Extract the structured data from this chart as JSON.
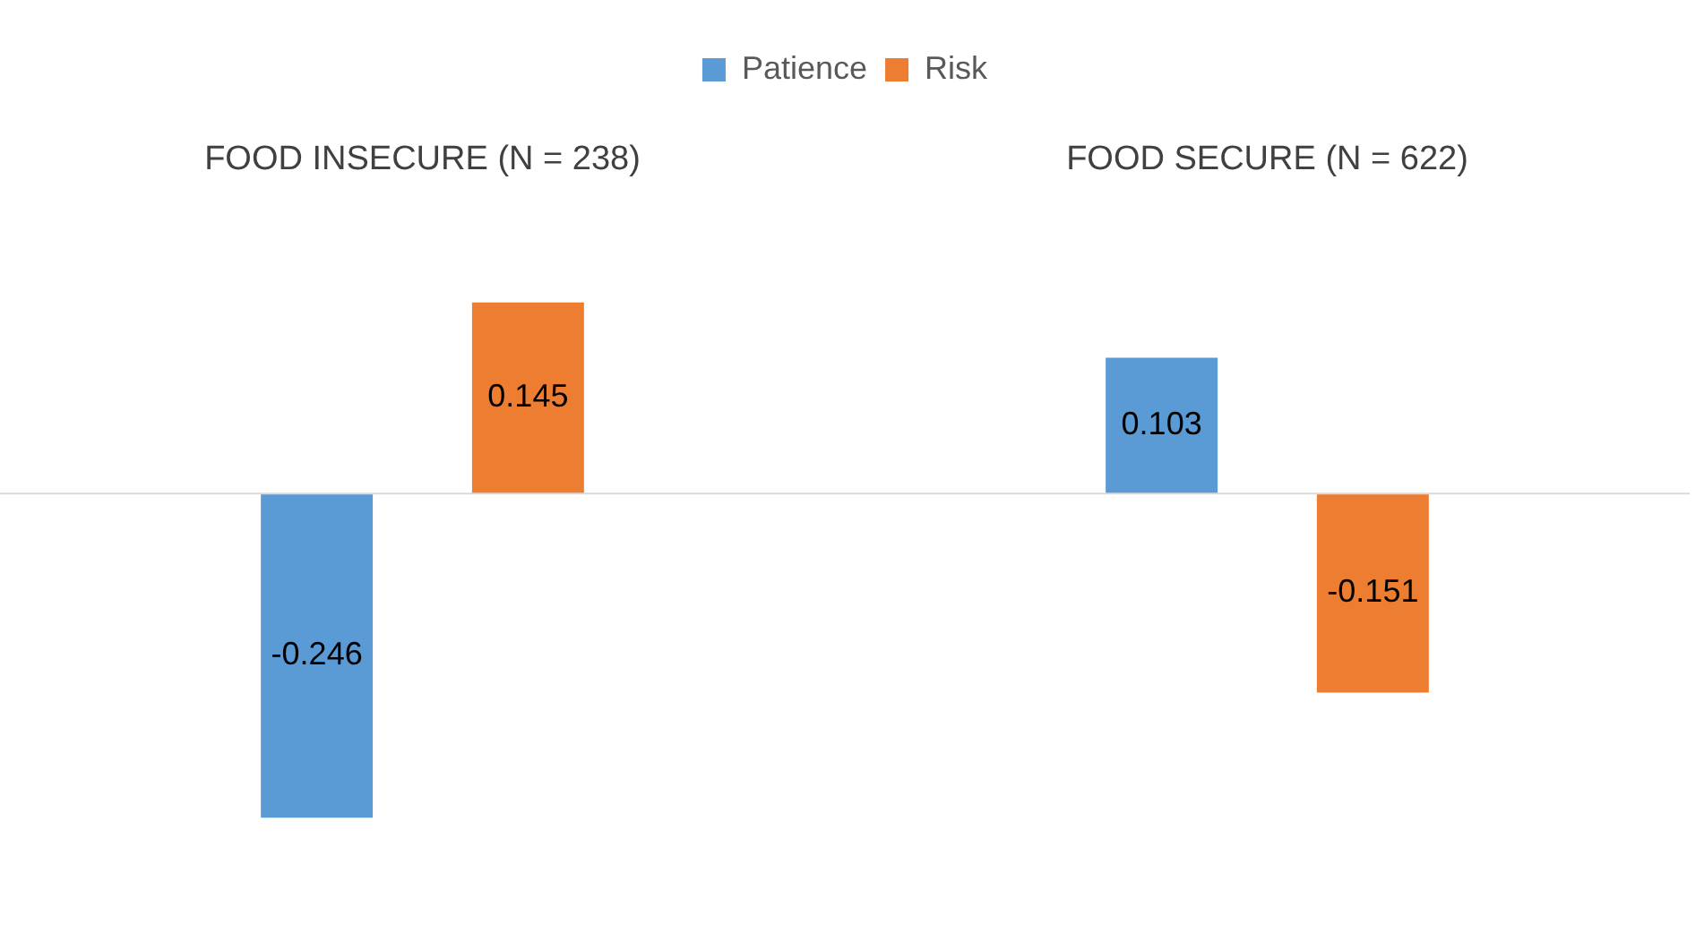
{
  "chart_data": {
    "type": "bar",
    "categories": [
      "FOOD INSECURE (N = 238)",
      "FOOD SECURE (N = 622)"
    ],
    "series": [
      {
        "name": "Patience",
        "color": "#5b9bd5",
        "values": [
          -0.246,
          0.103
        ]
      },
      {
        "name": "Risk",
        "color": "#ed7d31",
        "values": [
          0.145,
          -0.151
        ]
      }
    ],
    "data_labels": true,
    "legend": "top",
    "grid": false
  }
}
